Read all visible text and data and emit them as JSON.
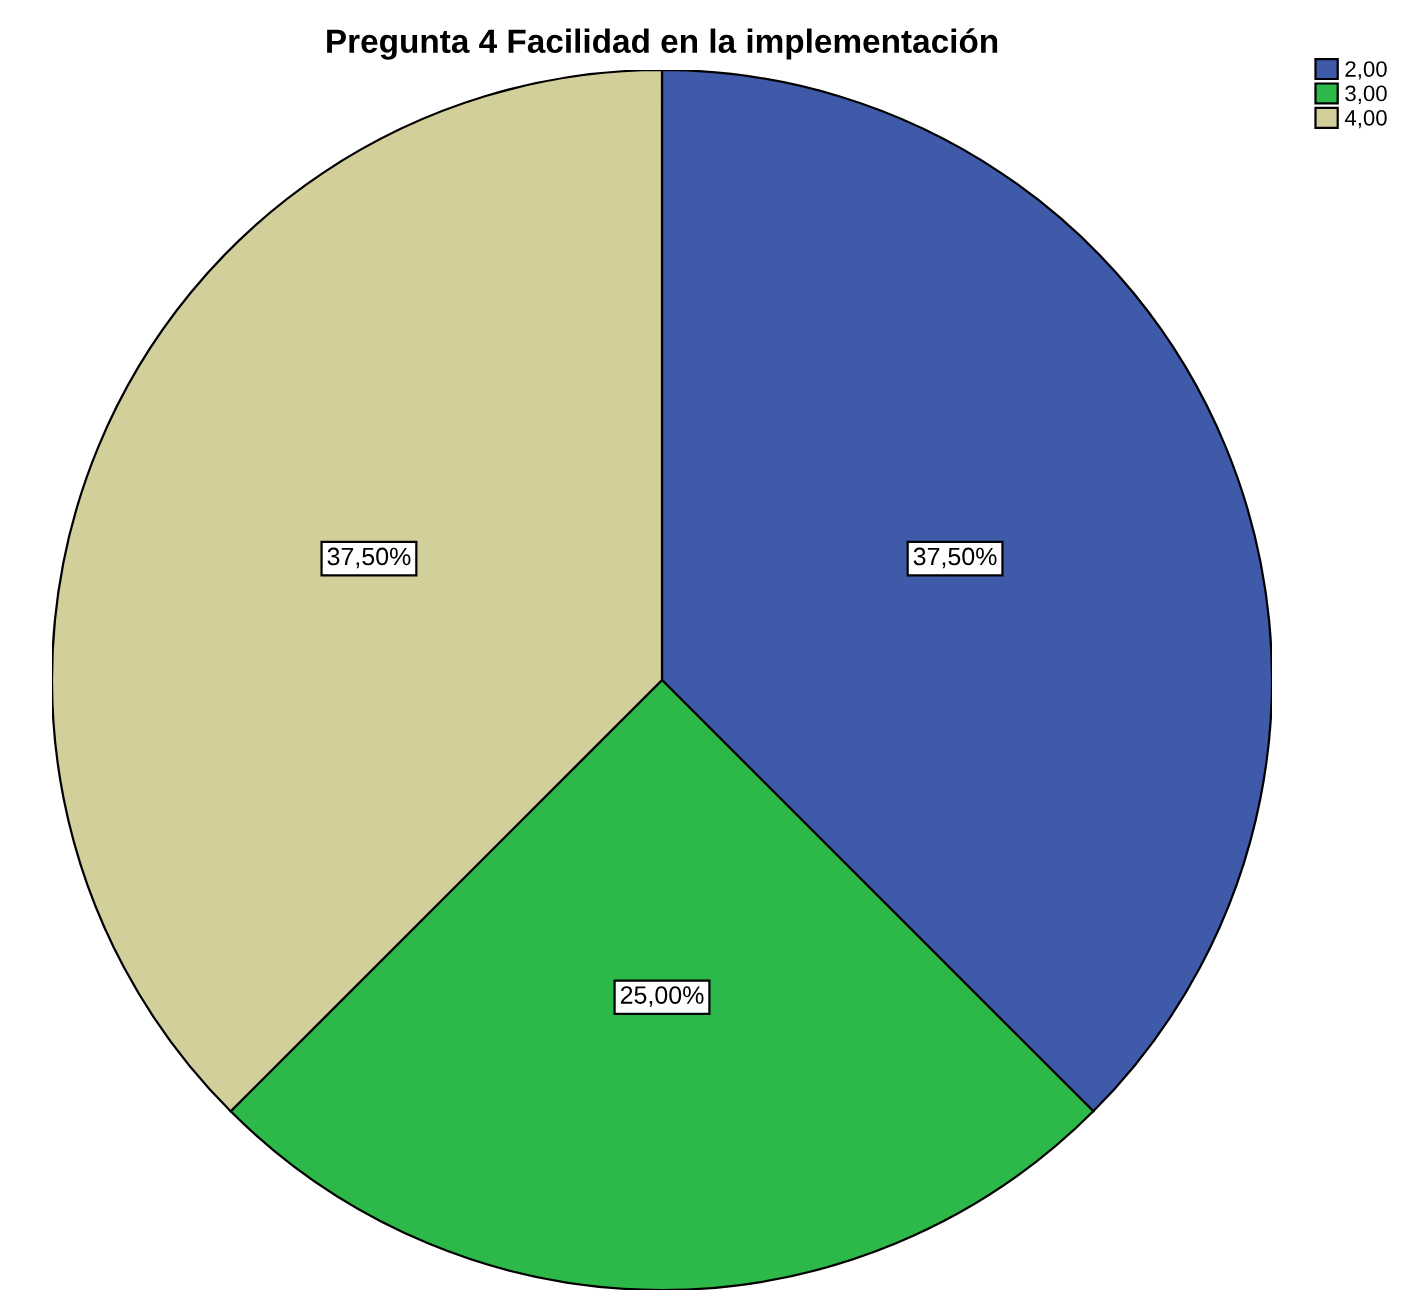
{
  "chart_data": {
    "type": "pie",
    "title": "Pregunta 4 Facilidad en la implementación",
    "categories": [
      "2,00",
      "3,00",
      "4,00"
    ],
    "values": [
      37.5,
      25,
      37.5
    ],
    "colors": [
      "#3f5aa9",
      "#2db84a",
      "#d3cf9b"
    ],
    "value_labels": [
      "37,50%",
      "25,00%",
      "37,50%"
    ],
    "legend": "top right"
  }
}
